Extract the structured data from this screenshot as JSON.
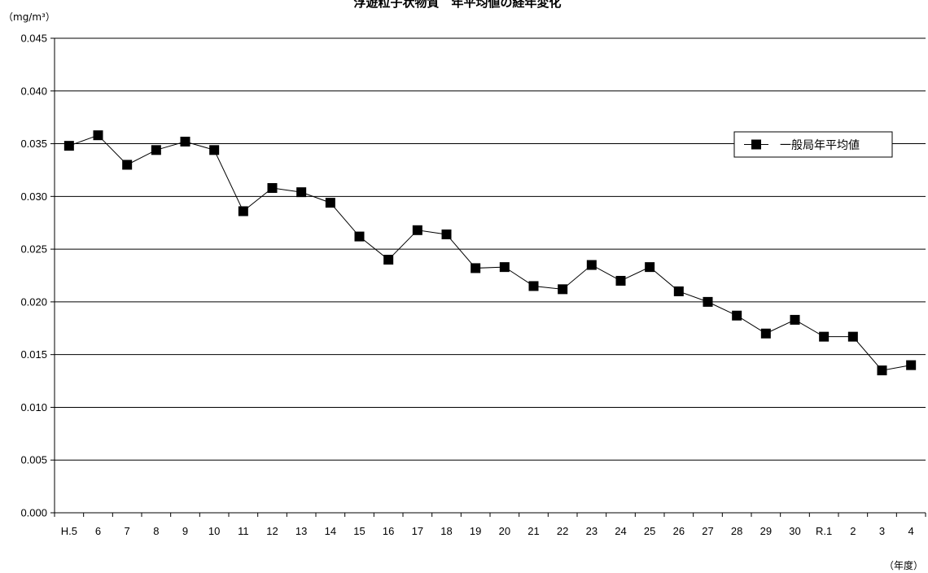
{
  "chart_data": {
    "type": "line",
    "title": "浮遊粒子状物質　年平均値の経年変化",
    "ylabel": "（mg/m³）",
    "xlabel": "（年度）",
    "ylim": [
      0,
      0.045
    ],
    "ytick_step": 0.005,
    "grid": true,
    "legend_position": "top-right",
    "categories": [
      "H.5",
      "6",
      "7",
      "8",
      "9",
      "10",
      "11",
      "12",
      "13",
      "14",
      "15",
      "16",
      "17",
      "18",
      "19",
      "20",
      "21",
      "22",
      "23",
      "24",
      "25",
      "26",
      "27",
      "28",
      "29",
      "30",
      "R.1",
      "2",
      "3",
      "4"
    ],
    "series": [
      {
        "name": "一般局年平均値",
        "color": "#000000",
        "marker": "square",
        "values": [
          0.0348,
          0.0358,
          0.033,
          0.0344,
          0.0352,
          0.0344,
          0.0286,
          0.0308,
          0.0304,
          0.0294,
          0.0262,
          0.024,
          0.0268,
          0.0264,
          0.0232,
          0.0233,
          0.0215,
          0.0212,
          0.0235,
          0.022,
          0.0233,
          0.021,
          0.02,
          0.0187,
          0.017,
          0.0183,
          0.0167,
          0.0167,
          0.0135,
          0.014
        ]
      }
    ]
  }
}
